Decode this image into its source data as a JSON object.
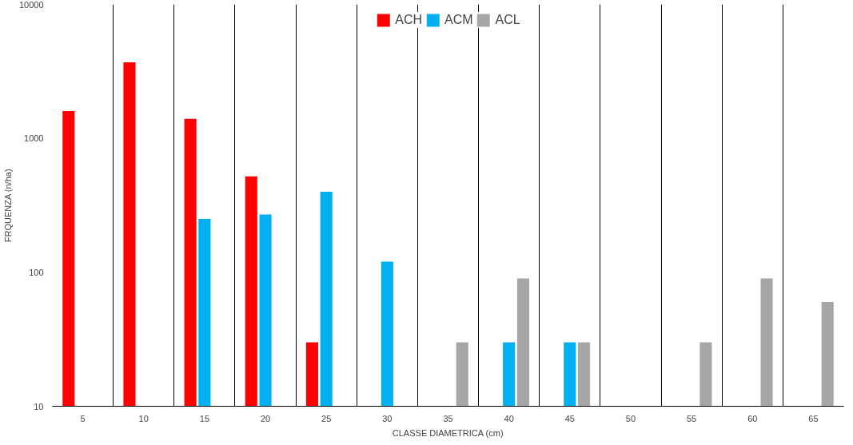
{
  "chart_data": {
    "type": "bar",
    "xlabel": "CLASSE DIAMETRICA (cm)",
    "ylabel": "FRQUENZA (n/ha)",
    "categories": [
      "5",
      "10",
      "15",
      "20",
      "25",
      "30",
      "35",
      "40",
      "45",
      "50",
      "55",
      "60",
      "65"
    ],
    "series": [
      {
        "name": "ACH",
        "color": "#ff0000",
        "values": [
          1600,
          3700,
          1400,
          520,
          30,
          null,
          null,
          null,
          null,
          null,
          null,
          null,
          null
        ]
      },
      {
        "name": "ACM",
        "color": "#00b0f0",
        "values": [
          null,
          null,
          250,
          270,
          400,
          120,
          null,
          30,
          30,
          null,
          null,
          null,
          null
        ]
      },
      {
        "name": "ACL",
        "color": "#a6a6a6",
        "values": [
          null,
          null,
          null,
          null,
          null,
          null,
          30,
          90,
          30,
          null,
          30,
          90,
          60
        ]
      }
    ],
    "log": true,
    "ylim": [
      10,
      10000
    ],
    "yticks": [
      10,
      100,
      1000,
      10000
    ],
    "grid": "x",
    "legend": "top"
  }
}
